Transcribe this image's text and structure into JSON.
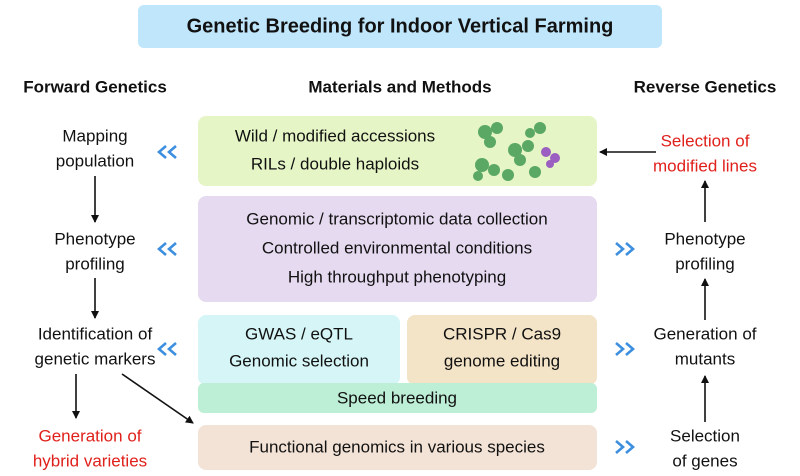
{
  "title": "Genetic Breeding for Indoor Vertical Farming",
  "columns": {
    "forward": "Forward Genetics",
    "methods": "Materials and Methods",
    "reverse": "Reverse Genetics"
  },
  "forward_steps": [
    [
      "Mapping",
      "population"
    ],
    [
      "Phenotype",
      "profiling"
    ],
    [
      "Identification of",
      "genetic markers"
    ],
    [
      "Generation of",
      "hybrid varieties"
    ]
  ],
  "reverse_steps": [
    [
      "Selection of",
      "modified lines"
    ],
    [
      "Phenotype",
      "profiling"
    ],
    [
      "Generation of",
      "mutants"
    ],
    [
      "Selection",
      "of genes"
    ]
  ],
  "methods": {
    "accessions": [
      "Wild / modified accessions",
      "RILs / double haploids"
    ],
    "data": [
      "Genomic / transcriptomic data collection",
      "Controlled environmental conditions",
      "High throughput phenotyping"
    ],
    "gwas": [
      "GWAS / eQTL",
      "Genomic selection"
    ],
    "crispr": [
      "CRISPR / Cas9",
      "genome editing"
    ],
    "speed": "Speed breeding",
    "functional": "Functional genomics in various species"
  }
}
